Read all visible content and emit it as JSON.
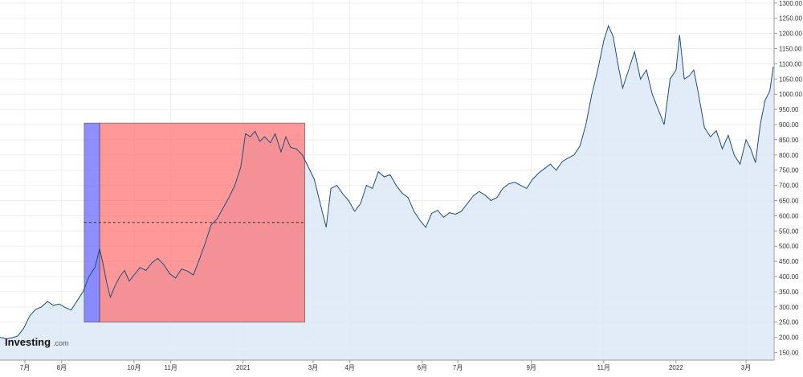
{
  "chart_data": {
    "type": "area",
    "title": "",
    "xlabel": "",
    "ylabel": "",
    "ylim": [
      125,
      1310
    ],
    "xlim": [
      "2020-06-10",
      "2022-03-24"
    ],
    "y_ticks": [
      150,
      200,
      250,
      300,
      350,
      400,
      450,
      500,
      550,
      600,
      650,
      700,
      750,
      800,
      850,
      900,
      950,
      1000,
      1050,
      1100,
      1150,
      1200,
      1250,
      1300
    ],
    "y_tick_labels": [
      "150.00",
      "200.00",
      "250.00",
      "300.00",
      "350.00",
      "400.00",
      "450.00",
      "500.00",
      "550.00",
      "600.00",
      "650.00",
      "700.00",
      "750.00",
      "800.00",
      "850.00",
      "900.00",
      "950.00",
      "1000.00",
      "1050.00",
      "1100.00",
      "1150.00",
      "1200.00",
      "1250.00",
      "1300.00"
    ],
    "x_ticks": [
      {
        "date": "2020-07-01",
        "label": "7月"
      },
      {
        "date": "2020-08-01",
        "label": "8月"
      },
      {
        "date": "2020-10-01",
        "label": "10月"
      },
      {
        "date": "2020-11-01",
        "label": "11月"
      },
      {
        "date": "2021-01-01",
        "label": "2021"
      },
      {
        "date": "2021-03-01",
        "label": "3月"
      },
      {
        "date": "2021-04-01",
        "label": "4月"
      },
      {
        "date": "2021-06-01",
        "label": "6月"
      },
      {
        "date": "2021-07-01",
        "label": "7月"
      },
      {
        "date": "2021-09-01",
        "label": "9月"
      },
      {
        "date": "2021-11-01",
        "label": "11月"
      },
      {
        "date": "2022-01-01",
        "label": "2022"
      },
      {
        "date": "2022-03-01",
        "label": "3月"
      }
    ],
    "series": [
      {
        "line_color": "#1f4e79",
        "fill_color": "#dce9f7",
        "points": [
          [
            "2020-06-10",
            200
          ],
          [
            "2020-06-15",
            195
          ],
          [
            "2020-06-20",
            198
          ],
          [
            "2020-06-25",
            205
          ],
          [
            "2020-06-30",
            230
          ],
          [
            "2020-07-05",
            270
          ],
          [
            "2020-07-10",
            292
          ],
          [
            "2020-07-15",
            300
          ],
          [
            "2020-07-20",
            318
          ],
          [
            "2020-07-25",
            305
          ],
          [
            "2020-07-30",
            310
          ],
          [
            "2020-08-04",
            298
          ],
          [
            "2020-08-09",
            290
          ],
          [
            "2020-08-14",
            320
          ],
          [
            "2020-08-19",
            350
          ],
          [
            "2020-08-24",
            400
          ],
          [
            "2020-08-29",
            430
          ],
          [
            "2020-09-02",
            492
          ],
          [
            "2020-09-05",
            440
          ],
          [
            "2020-09-08",
            380
          ],
          [
            "2020-09-11",
            332
          ],
          [
            "2020-09-15",
            370
          ],
          [
            "2020-09-19",
            400
          ],
          [
            "2020-09-23",
            420
          ],
          [
            "2020-09-27",
            385
          ],
          [
            "2020-10-01",
            405
          ],
          [
            "2020-10-06",
            430
          ],
          [
            "2020-10-11",
            420
          ],
          [
            "2020-10-16",
            445
          ],
          [
            "2020-10-21",
            460
          ],
          [
            "2020-10-26",
            440
          ],
          [
            "2020-10-31",
            410
          ],
          [
            "2020-11-05",
            395
          ],
          [
            "2020-11-10",
            425
          ],
          [
            "2020-11-15",
            418
          ],
          [
            "2020-11-20",
            405
          ],
          [
            "2020-11-25",
            455
          ],
          [
            "2020-11-30",
            510
          ],
          [
            "2020-12-05",
            570
          ],
          [
            "2020-12-10",
            590
          ],
          [
            "2020-12-15",
            625
          ],
          [
            "2020-12-20",
            660
          ],
          [
            "2020-12-25",
            700
          ],
          [
            "2020-12-30",
            760
          ],
          [
            "2021-01-03",
            870
          ],
          [
            "2021-01-07",
            860
          ],
          [
            "2021-01-11",
            878
          ],
          [
            "2021-01-15",
            845
          ],
          [
            "2021-01-19",
            860
          ],
          [
            "2021-01-24",
            840
          ],
          [
            "2021-01-28",
            870
          ],
          [
            "2021-02-02",
            810
          ],
          [
            "2021-02-06",
            860
          ],
          [
            "2021-02-10",
            825
          ],
          [
            "2021-02-15",
            820
          ],
          [
            "2021-02-20",
            800
          ],
          [
            "2021-02-25",
            760
          ],
          [
            "2021-03-02",
            720
          ],
          [
            "2021-03-07",
            640
          ],
          [
            "2021-03-12",
            562
          ],
          [
            "2021-03-16",
            690
          ],
          [
            "2021-03-21",
            700
          ],
          [
            "2021-03-26",
            672
          ],
          [
            "2021-03-31",
            650
          ],
          [
            "2021-04-05",
            615
          ],
          [
            "2021-04-10",
            640
          ],
          [
            "2021-04-15",
            700
          ],
          [
            "2021-04-20",
            690
          ],
          [
            "2021-04-25",
            745
          ],
          [
            "2021-04-30",
            728
          ],
          [
            "2021-05-05",
            735
          ],
          [
            "2021-05-10",
            700
          ],
          [
            "2021-05-15",
            675
          ],
          [
            "2021-05-20",
            660
          ],
          [
            "2021-05-25",
            615
          ],
          [
            "2021-05-30",
            585
          ],
          [
            "2021-06-04",
            562
          ],
          [
            "2021-06-09",
            608
          ],
          [
            "2021-06-14",
            618
          ],
          [
            "2021-06-19",
            595
          ],
          [
            "2021-06-24",
            610
          ],
          [
            "2021-06-29",
            605
          ],
          [
            "2021-07-04",
            615
          ],
          [
            "2021-07-09",
            640
          ],
          [
            "2021-07-14",
            665
          ],
          [
            "2021-07-19",
            680
          ],
          [
            "2021-07-24",
            668
          ],
          [
            "2021-07-29",
            650
          ],
          [
            "2021-08-03",
            660
          ],
          [
            "2021-08-08",
            690
          ],
          [
            "2021-08-13",
            705
          ],
          [
            "2021-08-18",
            710
          ],
          [
            "2021-08-23",
            700
          ],
          [
            "2021-08-28",
            690
          ],
          [
            "2021-09-02",
            720
          ],
          [
            "2021-09-07",
            740
          ],
          [
            "2021-09-12",
            755
          ],
          [
            "2021-09-17",
            770
          ],
          [
            "2021-09-22",
            750
          ],
          [
            "2021-09-27",
            778
          ],
          [
            "2021-10-02",
            790
          ],
          [
            "2021-10-07",
            800
          ],
          [
            "2021-10-12",
            830
          ],
          [
            "2021-10-17",
            900
          ],
          [
            "2021-10-22",
            1000
          ],
          [
            "2021-10-27",
            1080
          ],
          [
            "2021-11-01",
            1175
          ],
          [
            "2021-11-05",
            1225
          ],
          [
            "2021-11-09",
            1190
          ],
          [
            "2021-11-13",
            1100
          ],
          [
            "2021-11-17",
            1020
          ],
          [
            "2021-11-22",
            1080
          ],
          [
            "2021-11-27",
            1140
          ],
          [
            "2021-12-02",
            1050
          ],
          [
            "2021-12-07",
            1080
          ],
          [
            "2021-12-12",
            1000
          ],
          [
            "2021-12-17",
            950
          ],
          [
            "2021-12-22",
            900
          ],
          [
            "2021-12-27",
            1050
          ],
          [
            "2022-01-01",
            1080
          ],
          [
            "2022-01-04",
            1195
          ],
          [
            "2022-01-08",
            1050
          ],
          [
            "2022-01-12",
            1060
          ],
          [
            "2022-01-16",
            1080
          ],
          [
            "2022-01-20",
            1000
          ],
          [
            "2022-01-25",
            890
          ],
          [
            "2022-01-30",
            860
          ],
          [
            "2022-02-04",
            880
          ],
          [
            "2022-02-09",
            820
          ],
          [
            "2022-02-14",
            865
          ],
          [
            "2022-02-19",
            800
          ],
          [
            "2022-02-24",
            770
          ],
          [
            "2022-03-01",
            850
          ],
          [
            "2022-03-05",
            820
          ],
          [
            "2022-03-09",
            775
          ],
          [
            "2022-03-13",
            900
          ],
          [
            "2022-03-17",
            980
          ],
          [
            "2022-03-21",
            1010
          ],
          [
            "2022-03-24",
            1090
          ]
        ]
      }
    ],
    "annotations": [
      {
        "type": "rect",
        "x_start": "2020-08-20",
        "x_end": "2020-09-02",
        "y_start": 250,
        "y_end": 905,
        "color": "#6a6aff",
        "opacity": 0.75
      },
      {
        "type": "rect",
        "x_start": "2020-09-02",
        "x_end": "2021-02-22",
        "y_start": 250,
        "y_end": 905,
        "color": "#ff5555",
        "opacity": 0.6
      },
      {
        "type": "hline",
        "x_start": "2020-08-20",
        "x_end": "2021-02-22",
        "y": 578,
        "style": "dashed",
        "color": "#333333"
      }
    ],
    "grid": true,
    "legend": "none"
  },
  "branding": {
    "logo_main": "Investing",
    "logo_sub": ".com"
  }
}
